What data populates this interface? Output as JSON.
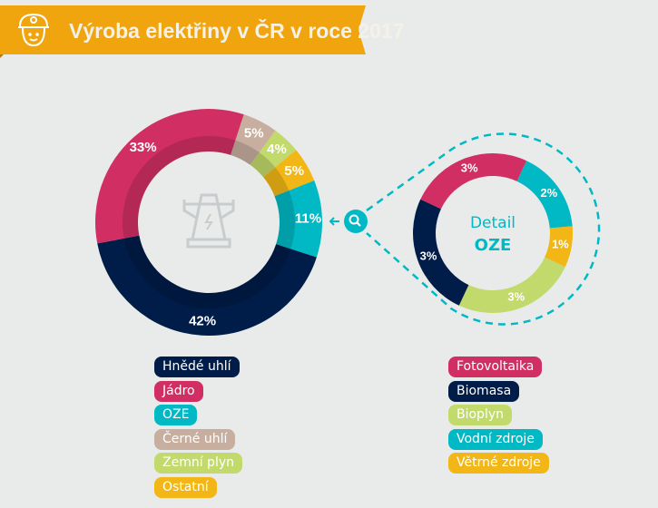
{
  "header": {
    "title": "Výroba elektřiny v ČR v roce 2017",
    "icon": "miner-helmet-icon",
    "color": "#f0a50f"
  },
  "chart_data": [
    {
      "type": "pie",
      "donut": true,
      "categories": [
        "Černé uhlí",
        "Zemní plyn",
        "Ostatní",
        "OZE",
        "Hnědé uhlí",
        "Jádro"
      ],
      "values": [
        5,
        4,
        5,
        11,
        42,
        33
      ],
      "labels": [
        "5%",
        "4%",
        "5%",
        "11%",
        "42%",
        "33%"
      ],
      "colors": [
        "#c7ae9f",
        "#c2d96b",
        "#f2b716",
        "#00b9c4",
        "#001c48",
        "#d12f64"
      ],
      "center_icon": "power-pylon-icon"
    },
    {
      "type": "pie",
      "donut": true,
      "title": "Detail",
      "subtitle": "OZE",
      "categories": [
        "Fotovoltaika",
        "Vodní zdroje",
        "Větrné zdroje",
        "Bioplyn",
        "Biomasa"
      ],
      "values": [
        3,
        2,
        1,
        3,
        3
      ],
      "labels": [
        "3%",
        "2%",
        "1%",
        "3%",
        "3%"
      ],
      "colors": [
        "#d12f64",
        "#00b9c4",
        "#f2b716",
        "#c2d96b",
        "#001c48"
      ],
      "accent": "#00b9c4",
      "link_icon": "magnifier-icon"
    }
  ],
  "legend_main": [
    {
      "label": "Hnědé uhlí",
      "color": "#001c48"
    },
    {
      "label": "Jádro",
      "color": "#d12f64"
    },
    {
      "label": "OZE",
      "color": "#00b9c4"
    },
    {
      "label": "Černé uhlí",
      "color": "#c7ae9f"
    },
    {
      "label": "Zemní plyn",
      "color": "#c2d96b"
    },
    {
      "label": "Ostatní",
      "color": "#f2b716"
    }
  ],
  "legend_detail": [
    {
      "label": "Fotovoltaika",
      "color": "#d12f64"
    },
    {
      "label": "Biomasa",
      "color": "#001c48"
    },
    {
      "label": "Bioplyn",
      "color": "#c2d96b"
    },
    {
      "label": "Vodní zdroje",
      "color": "#00b9c4"
    },
    {
      "label": "Větrné zdroje",
      "color": "#f2b716"
    }
  ]
}
